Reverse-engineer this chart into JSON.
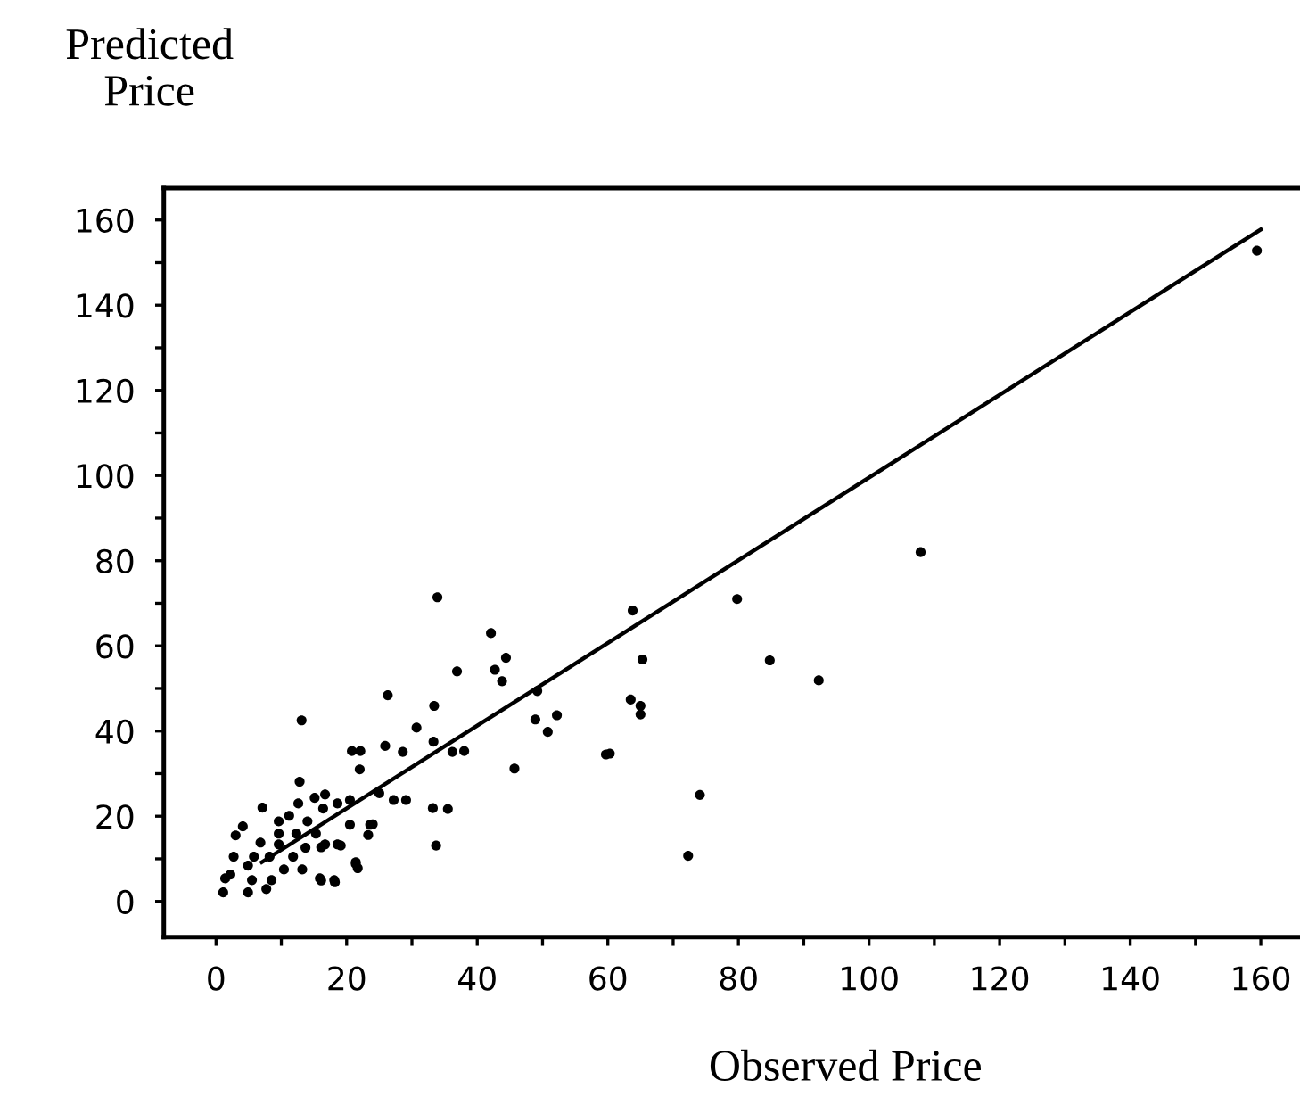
{
  "chart_data": {
    "type": "scatter",
    "xlabel": "Observed Price",
    "ylabel": "Predicted\nPrice",
    "xlim": [
      -8,
      166
    ],
    "ylim": [
      -8.4,
      167.5
    ],
    "xticks": [
      0,
      {
        "value": 10,
        "label": null
      },
      20,
      {
        "value": 30,
        "label": null
      },
      40,
      {
        "value": 50,
        "label": null
      },
      60,
      {
        "value": 70,
        "label": null
      },
      80,
      {
        "value": 90,
        "label": null
      },
      100,
      {
        "value": 110,
        "label": null
      },
      120,
      {
        "value": 130,
        "label": null
      },
      140,
      {
        "value": 150,
        "label": null
      },
      160
    ],
    "yticks": [
      0,
      {
        "value": 10,
        "label": null
      },
      20,
      {
        "value": 30,
        "label": null
      },
      40,
      {
        "value": 50,
        "label": null
      },
      60,
      {
        "value": 70,
        "label": null
      },
      80,
      {
        "value": 90,
        "label": null
      },
      100,
      {
        "value": 110,
        "label": null
      },
      120,
      {
        "value": 130,
        "label": null
      },
      140,
      {
        "value": 150,
        "label": null
      },
      160
    ],
    "grid": false,
    "legend": false,
    "marker": "circle",
    "series": [
      {
        "color": "#000000",
        "x": [
          159.4,
          107.9,
          79.8,
          84.8,
          92.3,
          72.3,
          74.1,
          63.8,
          65.3,
          63.5,
          65,
          65,
          60.3,
          59.7,
          52.2,
          50.8,
          48.9,
          49.2,
          45.7,
          44.4,
          43.8,
          42.7,
          42.1,
          33.9,
          36.9,
          33.4,
          33.3,
          30.7,
          28.6,
          25.9,
          26.3,
          36.2,
          38,
          33.2,
          35.5,
          33.7,
          29.1,
          27.2,
          25,
          20.8,
          22.1,
          22,
          13.1,
          12.8,
          24,
          23.3,
          21.4,
          21.7,
          18.2,
          16.1,
          16.1,
          19.1,
          1.1,
          4.9,
          7.7,
          2.2,
          5.8,
          4.1,
          7.1,
          9.6,
          12.3,
          12.6,
          15.1,
          16.7,
          13.2,
          15.9,
          18.1,
          21.4,
          18.6,
          16.7,
          20.5,
          23.6,
          20.5,
          10.4,
          8.5,
          2.7,
          9.6,
          11.2,
          14,
          15.3,
          5.5,
          8.2,
          13.7,
          6.8,
          11.8,
          9.6,
          16.4,
          18.6,
          4.9,
          3,
          1.4
        ],
        "values": [
          152.8,
          82,
          71,
          56.6,
          51.9,
          10.7,
          25,
          68.3,
          56.8,
          47.4,
          45.9,
          43.9,
          34.7,
          34.5,
          43.7,
          39.8,
          42.7,
          49.4,
          31.2,
          57.2,
          51.7,
          54.4,
          63,
          71.4,
          54,
          45.9,
          37.5,
          40.8,
          35.1,
          36.5,
          48.4,
          35.1,
          35.3,
          21.9,
          21.7,
          13.1,
          23.8,
          23.8,
          25.4,
          35.3,
          35.3,
          31,
          42.5,
          28.1,
          18.1,
          15.6,
          8.8,
          7.8,
          4.5,
          4.9,
          12.7,
          13.1,
          2.1,
          2.1,
          2.9,
          6.3,
          10.5,
          17.6,
          22,
          13.4,
          15.9,
          23,
          24.3,
          25.1,
          7.5,
          5.4,
          5,
          9.2,
          13.4,
          13.4,
          18,
          18,
          23.8,
          7.5,
          5,
          10.5,
          18.8,
          20.1,
          18.8,
          15.9,
          5,
          10.5,
          12.6,
          13.8,
          10.5,
          15.9,
          21.8,
          23,
          8.4,
          15.5,
          5.4
        ]
      },
      {
        "type": "line",
        "color": "#000000",
        "marker": "none",
        "line_style": "solid",
        "x": [
          7,
          160
        ],
        "values": [
          9.2,
          157.8
        ]
      }
    ]
  }
}
